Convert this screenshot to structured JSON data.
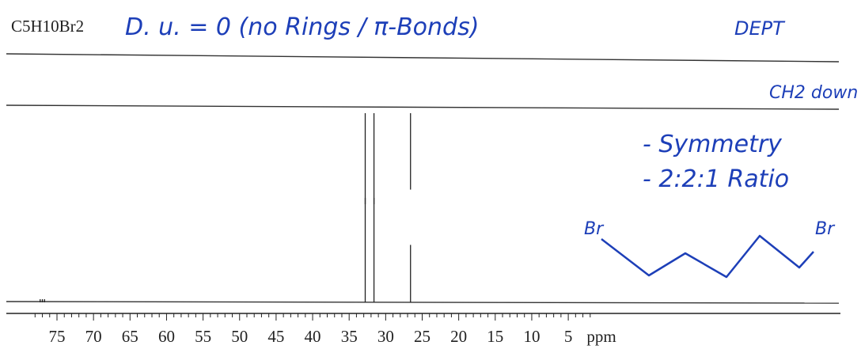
{
  "header": {
    "formula": "C5H10Br2",
    "note": "D. u. = 0 (no Rings / π-Bonds)",
    "experiment": "DEPT"
  },
  "annotations": {
    "dept_label": "CH2 down",
    "symmetry": "- Symmetry",
    "ratio": "- 2:2:1 Ratio"
  },
  "structure": {
    "left_atom": "Br",
    "right_atom": "Br"
  },
  "chart_data": [
    {
      "type": "line",
      "panel": "DEPT",
      "xlabel": "",
      "x_unit": "ppm",
      "xlim": [
        78,
        2
      ],
      "peaks": [
        {
          "shift": 32.8,
          "relative_height": 1.0
        },
        {
          "shift": 31.6,
          "relative_height": 1.0
        },
        {
          "shift": 26.6,
          "relative_height": 0.85
        }
      ]
    },
    {
      "type": "line",
      "panel": "13C",
      "xlabel": "",
      "x_unit": "ppm",
      "xlim": [
        78,
        2
      ],
      "x_ticks": [
        75,
        70,
        65,
        60,
        55,
        50,
        45,
        40,
        35,
        30,
        25,
        20,
        15,
        10,
        5
      ],
      "tick_label_unit": "ppm",
      "peaks": [
        {
          "shift": 32.8,
          "relative_height": 1.0
        },
        {
          "shift": 31.6,
          "relative_height": 1.0
        },
        {
          "shift": 26.6,
          "relative_height": 0.55
        },
        {
          "shift": 77.3,
          "relative_height": 0.03
        },
        {
          "shift": 77.0,
          "relative_height": 0.03
        },
        {
          "shift": 76.7,
          "relative_height": 0.03
        }
      ]
    }
  ]
}
